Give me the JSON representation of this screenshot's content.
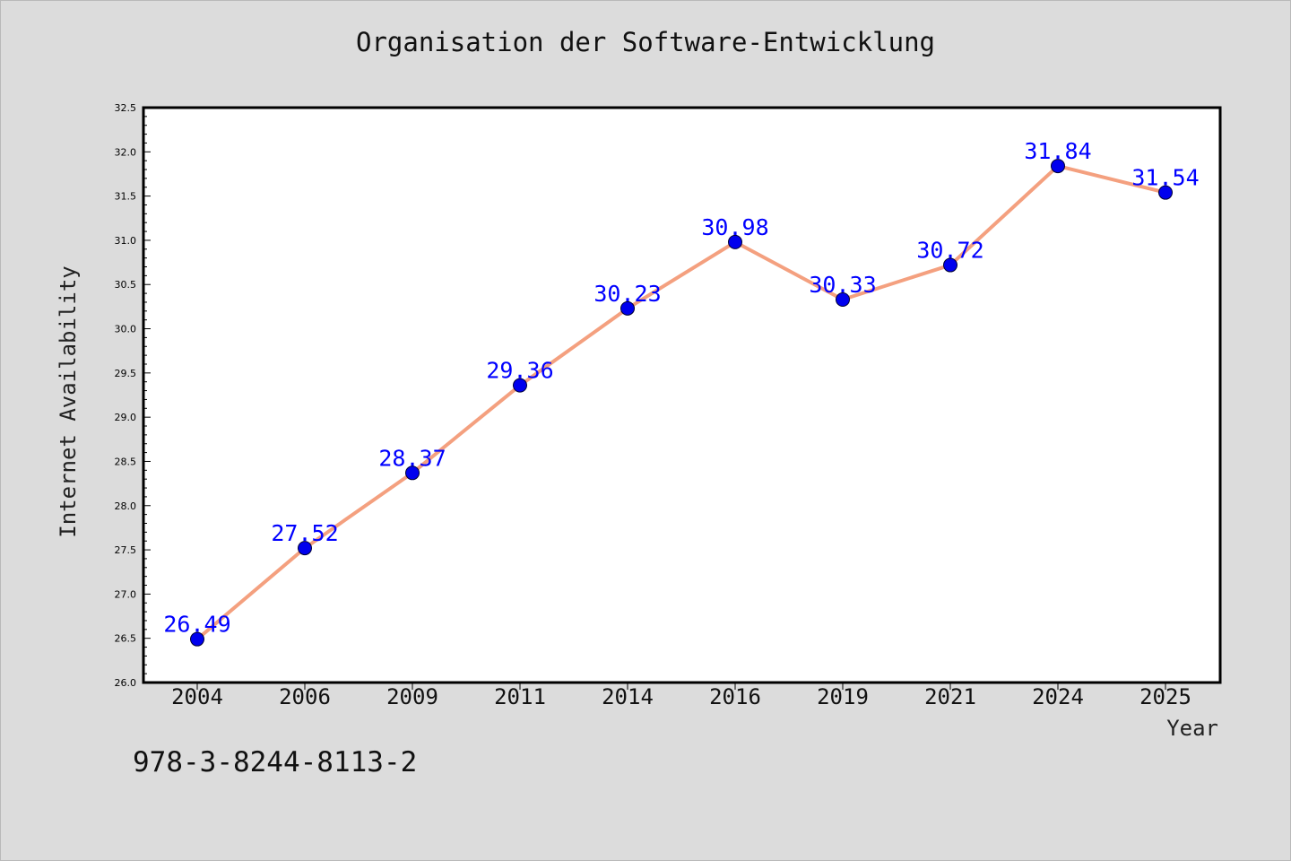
{
  "chart_data": {
    "type": "line",
    "title": "Organisation der Software-Entwicklung",
    "xlabel": "Year",
    "ylabel": "Internet Availability",
    "categories": [
      "2004",
      "2006",
      "2009",
      "2011",
      "2014",
      "2016",
      "2019",
      "2021",
      "2024",
      "2025"
    ],
    "values": [
      26.49,
      27.52,
      28.37,
      29.36,
      30.23,
      30.98,
      30.33,
      30.72,
      31.84,
      31.54
    ],
    "data_labels": [
      "26.49",
      "27.52",
      "28.37",
      "29.36",
      "30.23",
      "30.98",
      "30.33",
      "30.72",
      "31.84",
      "31.54"
    ],
    "ylim": [
      26.0,
      32.5
    ],
    "yticks": [
      "26.0",
      "26.5",
      "27.0",
      "27.5",
      "28.0",
      "28.5",
      "29.0",
      "29.5",
      "30.0",
      "30.5",
      "31.0",
      "31.5",
      "32.0",
      "32.5"
    ],
    "grid": false,
    "colors": {
      "line": "#f4a07f",
      "marker": "#0000ee",
      "label": "#0000ff",
      "background": "#dcdcdc",
      "plot_bg": "#ffffff"
    }
  },
  "footer": {
    "isbn": "978-3-8244-8113-2"
  }
}
